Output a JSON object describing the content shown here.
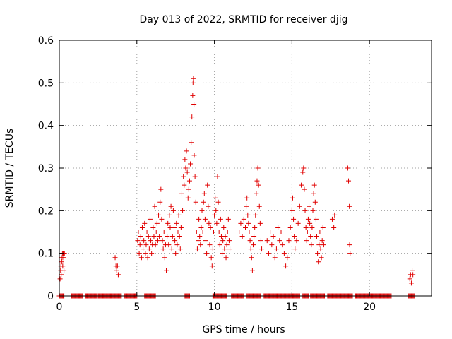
{
  "chart_data": {
    "type": "scatter",
    "title": "Day 013 of 2022, SRMTID for receiver djig",
    "xlabel": "GPS time / hours",
    "ylabel": "SRMTID / TECUs",
    "xlim": [
      0,
      24
    ],
    "ylim": [
      0,
      0.6
    ],
    "x_ticks": [
      0,
      5,
      10,
      15,
      20
    ],
    "x_tick_labels": [
      "0",
      "5",
      "10",
      "15",
      "20"
    ],
    "y_ticks": [
      0,
      0.1,
      0.2,
      0.3,
      0.4,
      0.5,
      0.6
    ],
    "y_tick_labels": [
      "0",
      "0.1",
      "0.2",
      "0.3",
      "0.4",
      "0.5",
      "0.6"
    ],
    "grid": true,
    "marker": "+",
    "series_color": "#e00000",
    "series": [
      {
        "name": "SRMTID",
        "points": [
          [
            0.05,
            0.04
          ],
          [
            0.08,
            0.06
          ],
          [
            0.1,
            0.07
          ],
          [
            0.12,
            0.05
          ],
          [
            0.15,
            0.08
          ],
          [
            0.18,
            0.09
          ],
          [
            0.2,
            0.1
          ],
          [
            0.22,
            0.07
          ],
          [
            0.25,
            0.1
          ],
          [
            0.28,
            0.09
          ],
          [
            0.3,
            0.06
          ],
          [
            0.33,
            0.1
          ],
          [
            3.6,
            0.09
          ],
          [
            3.65,
            0.07
          ],
          [
            3.7,
            0.06
          ],
          [
            3.75,
            0.07
          ],
          [
            3.8,
            0.05
          ],
          [
            5.05,
            0.13
          ],
          [
            5.1,
            0.15
          ],
          [
            5.15,
            0.1
          ],
          [
            5.2,
            0.12
          ],
          [
            5.25,
            0.14
          ],
          [
            5.3,
            0.09
          ],
          [
            5.35,
            0.16
          ],
          [
            5.4,
            0.11
          ],
          [
            5.45,
            0.13
          ],
          [
            5.5,
            0.17
          ],
          [
            5.55,
            0.1
          ],
          [
            5.6,
            0.12
          ],
          [
            5.65,
            0.15
          ],
          [
            5.7,
            0.09
          ],
          [
            5.75,
            0.14
          ],
          [
            5.8,
            0.11
          ],
          [
            5.85,
            0.18
          ],
          [
            5.9,
            0.13
          ],
          [
            5.95,
            0.1
          ],
          [
            6.0,
            0.12
          ],
          [
            6.05,
            0.16
          ],
          [
            6.1,
            0.14
          ],
          [
            6.15,
            0.21
          ],
          [
            6.2,
            0.12
          ],
          [
            6.25,
            0.15
          ],
          [
            6.3,
            0.17
          ],
          [
            6.35,
            0.13
          ],
          [
            6.4,
            0.19
          ],
          [
            6.45,
            0.14
          ],
          [
            6.5,
            0.22
          ],
          [
            6.55,
            0.25
          ],
          [
            6.6,
            0.18
          ],
          [
            6.65,
            0.13
          ],
          [
            6.7,
            0.11
          ],
          [
            6.75,
            0.15
          ],
          [
            6.8,
            0.09
          ],
          [
            6.85,
            0.12
          ],
          [
            6.9,
            0.06
          ],
          [
            6.95,
            0.14
          ],
          [
            7.0,
            0.17
          ],
          [
            7.05,
            0.12
          ],
          [
            7.1,
            0.19
          ],
          [
            7.15,
            0.16
          ],
          [
            7.2,
            0.21
          ],
          [
            7.25,
            0.11
          ],
          [
            7.3,
            0.14
          ],
          [
            7.35,
            0.2
          ],
          [
            7.4,
            0.16
          ],
          [
            7.45,
            0.13
          ],
          [
            7.5,
            0.1
          ],
          [
            7.55,
            0.17
          ],
          [
            7.6,
            0.12
          ],
          [
            7.65,
            0.15
          ],
          [
            7.7,
            0.19
          ],
          [
            7.75,
            0.14
          ],
          [
            7.8,
            0.11
          ],
          [
            7.85,
            0.16
          ],
          [
            7.9,
            0.24
          ],
          [
            7.95,
            0.2
          ],
          [
            8.0,
            0.28
          ],
          [
            8.05,
            0.26
          ],
          [
            8.1,
            0.32
          ],
          [
            8.15,
            0.3
          ],
          [
            8.2,
            0.34
          ],
          [
            8.25,
            0.29
          ],
          [
            8.3,
            0.23
          ],
          [
            8.35,
            0.25
          ],
          [
            8.4,
            0.27
          ],
          [
            8.45,
            0.31
          ],
          [
            8.5,
            0.36
          ],
          [
            8.55,
            0.42
          ],
          [
            8.6,
            0.47
          ],
          [
            8.62,
            0.5
          ],
          [
            8.65,
            0.51
          ],
          [
            8.68,
            0.45
          ],
          [
            8.7,
            0.33
          ],
          [
            8.75,
            0.28
          ],
          [
            8.8,
            0.22
          ],
          [
            8.85,
            0.15
          ],
          [
            8.9,
            0.11
          ],
          [
            8.95,
            0.13
          ],
          [
            9.0,
            0.18
          ],
          [
            9.05,
            0.14
          ],
          [
            9.1,
            0.12
          ],
          [
            9.15,
            0.16
          ],
          [
            9.2,
            0.2
          ],
          [
            9.25,
            0.15
          ],
          [
            9.3,
            0.22
          ],
          [
            9.35,
            0.24
          ],
          [
            9.4,
            0.18
          ],
          [
            9.45,
            0.13
          ],
          [
            9.5,
            0.1
          ],
          [
            9.55,
            0.26
          ],
          [
            9.6,
            0.21
          ],
          [
            9.65,
            0.17
          ],
          [
            9.7,
            0.12
          ],
          [
            9.75,
            0.16
          ],
          [
            9.8,
            0.09
          ],
          [
            9.85,
            0.07
          ],
          [
            9.9,
            0.11
          ],
          [
            9.95,
            0.15
          ],
          [
            10.0,
            0.19
          ],
          [
            10.05,
            0.23
          ],
          [
            10.1,
            0.2
          ],
          [
            10.15,
            0.17
          ],
          [
            10.2,
            0.28
          ],
          [
            10.25,
            0.22
          ],
          [
            10.3,
            0.15
          ],
          [
            10.35,
            0.12
          ],
          [
            10.4,
            0.18
          ],
          [
            10.45,
            0.14
          ],
          [
            10.5,
            0.1
          ],
          [
            10.55,
            0.13
          ],
          [
            10.6,
            0.16
          ],
          [
            10.65,
            0.11
          ],
          [
            10.7,
            0.14
          ],
          [
            10.75,
            0.09
          ],
          [
            10.8,
            0.12
          ],
          [
            10.85,
            0.15
          ],
          [
            10.9,
            0.18
          ],
          [
            10.95,
            0.13
          ],
          [
            11.0,
            0.11
          ],
          [
            11.6,
            0.15
          ],
          [
            11.7,
            0.17
          ],
          [
            11.8,
            0.14
          ],
          [
            11.9,
            0.18
          ],
          [
            12.0,
            0.16
          ],
          [
            12.05,
            0.21
          ],
          [
            12.1,
            0.23
          ],
          [
            12.15,
            0.19
          ],
          [
            12.2,
            0.17
          ],
          [
            12.25,
            0.15
          ],
          [
            12.3,
            0.13
          ],
          [
            12.35,
            0.11
          ],
          [
            12.4,
            0.09
          ],
          [
            12.45,
            0.06
          ],
          [
            12.5,
            0.12
          ],
          [
            12.55,
            0.14
          ],
          [
            12.6,
            0.16
          ],
          [
            12.65,
            0.19
          ],
          [
            12.7,
            0.24
          ],
          [
            12.75,
            0.27
          ],
          [
            12.8,
            0.3
          ],
          [
            12.85,
            0.26
          ],
          [
            12.9,
            0.21
          ],
          [
            12.95,
            0.17
          ],
          [
            13.0,
            0.13
          ],
          [
            13.05,
            0.11
          ],
          [
            13.4,
            0.13
          ],
          [
            13.5,
            0.1
          ],
          [
            13.6,
            0.15
          ],
          [
            13.7,
            0.12
          ],
          [
            13.8,
            0.14
          ],
          [
            13.9,
            0.09
          ],
          [
            14.0,
            0.11
          ],
          [
            14.1,
            0.16
          ],
          [
            14.2,
            0.13
          ],
          [
            14.3,
            0.15
          ],
          [
            14.4,
            0.12
          ],
          [
            14.5,
            0.1
          ],
          [
            14.6,
            0.07
          ],
          [
            14.7,
            0.09
          ],
          [
            14.8,
            0.13
          ],
          [
            14.9,
            0.16
          ],
          [
            15.0,
            0.2
          ],
          [
            15.05,
            0.23
          ],
          [
            15.1,
            0.18
          ],
          [
            15.15,
            0.14
          ],
          [
            15.2,
            0.11
          ],
          [
            15.3,
            0.13
          ],
          [
            15.4,
            0.17
          ],
          [
            15.5,
            0.21
          ],
          [
            15.6,
            0.26
          ],
          [
            15.7,
            0.29
          ],
          [
            15.75,
            0.3
          ],
          [
            15.8,
            0.25
          ],
          [
            15.85,
            0.2
          ],
          [
            15.9,
            0.16
          ],
          [
            15.95,
            0.13
          ],
          [
            16.0,
            0.15
          ],
          [
            16.05,
            0.18
          ],
          [
            16.1,
            0.21
          ],
          [
            16.15,
            0.17
          ],
          [
            16.2,
            0.14
          ],
          [
            16.25,
            0.12
          ],
          [
            16.3,
            0.16
          ],
          [
            16.35,
            0.2
          ],
          [
            16.4,
            0.24
          ],
          [
            16.45,
            0.26
          ],
          [
            16.5,
            0.22
          ],
          [
            16.55,
            0.18
          ],
          [
            16.6,
            0.14
          ],
          [
            16.65,
            0.1
          ],
          [
            16.7,
            0.08
          ],
          [
            16.75,
            0.12
          ],
          [
            16.8,
            0.15
          ],
          [
            16.85,
            0.11
          ],
          [
            16.9,
            0.09
          ],
          [
            16.95,
            0.13
          ],
          [
            17.0,
            0.16
          ],
          [
            17.05,
            0.12
          ],
          [
            17.6,
            0.18
          ],
          [
            17.7,
            0.16
          ],
          [
            17.75,
            0.19
          ],
          [
            18.6,
            0.3
          ],
          [
            18.65,
            0.27
          ],
          [
            18.7,
            0.21
          ],
          [
            18.72,
            0.12
          ],
          [
            18.75,
            0.1
          ],
          [
            22.6,
            0.04
          ],
          [
            22.65,
            0.05
          ],
          [
            22.7,
            0.03
          ],
          [
            22.75,
            0.06
          ],
          [
            22.8,
            0.05
          ]
        ],
        "zero_ranges": [
          [
            0.0,
            0.3
          ],
          [
            0.8,
            1.5
          ],
          [
            1.7,
            2.4
          ],
          [
            2.5,
            4.0
          ],
          [
            4.2,
            5.0
          ],
          [
            5.5,
            6.2
          ],
          [
            8.1,
            8.4
          ],
          [
            9.9,
            10.8
          ],
          [
            11.1,
            11.9
          ],
          [
            12.1,
            13.0
          ],
          [
            13.2,
            15.5
          ],
          [
            15.7,
            16.1
          ],
          [
            16.2,
            17.1
          ],
          [
            17.3,
            18.9
          ],
          [
            19.1,
            21.4
          ],
          [
            22.5,
            22.9
          ]
        ]
      }
    ]
  }
}
